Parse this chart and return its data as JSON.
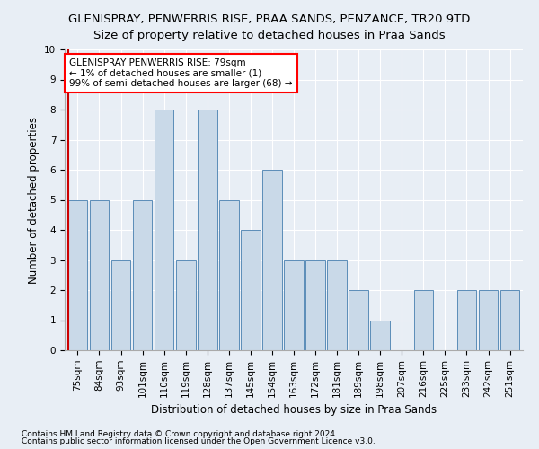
{
  "title": "GLENISPRAY, PENWERRIS RISE, PRAA SANDS, PENZANCE, TR20 9TD",
  "subtitle": "Size of property relative to detached houses in Praa Sands",
  "xlabel": "Distribution of detached houses by size in Praa Sands",
  "ylabel": "Number of detached properties",
  "categories": [
    "75sqm",
    "84sqm",
    "93sqm",
    "101sqm",
    "110sqm",
    "119sqm",
    "128sqm",
    "137sqm",
    "145sqm",
    "154sqm",
    "163sqm",
    "172sqm",
    "181sqm",
    "189sqm",
    "198sqm",
    "207sqm",
    "216sqm",
    "225sqm",
    "233sqm",
    "242sqm",
    "251sqm"
  ],
  "values": [
    5,
    5,
    3,
    5,
    8,
    3,
    8,
    5,
    4,
    6,
    3,
    3,
    3,
    2,
    1,
    0,
    2,
    0,
    2,
    2,
    2
  ],
  "bar_color": "#c9d9e8",
  "bar_edge_color": "#5b8db8",
  "annotation_text": "GLENISPRAY PENWERRIS RISE: 79sqm\n← 1% of detached houses are smaller (1)\n99% of semi-detached houses are larger (68) →",
  "annotation_box_color": "white",
  "annotation_box_edge": "red",
  "ylim": [
    0,
    10
  ],
  "yticks": [
    0,
    1,
    2,
    3,
    4,
    5,
    6,
    7,
    8,
    9,
    10
  ],
  "footer1": "Contains HM Land Registry data © Crown copyright and database right 2024.",
  "footer2": "Contains public sector information licensed under the Open Government Licence v3.0.",
  "title_fontsize": 9.5,
  "subtitle_fontsize": 9.5,
  "axis_label_fontsize": 8.5,
  "tick_fontsize": 7.5,
  "annotation_fontsize": 7.5,
  "footer_fontsize": 6.5,
  "bg_color": "#e8eef5",
  "plot_bg_color": "#e8eef5",
  "grid_color": "#ffffff",
  "red_line_color": "#cc0000"
}
